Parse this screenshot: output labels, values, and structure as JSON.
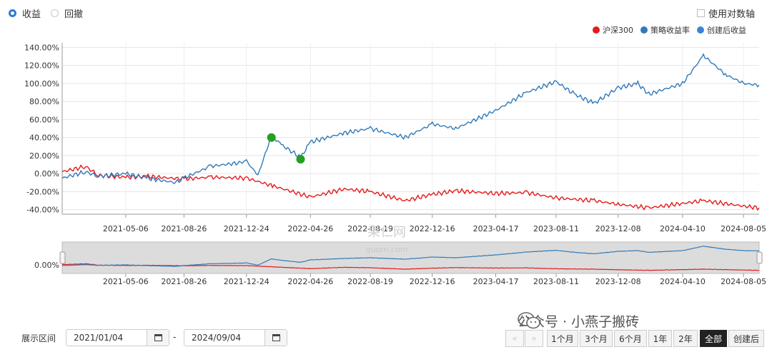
{
  "toggles": {
    "returns": "收益",
    "drawdown": "回撤",
    "log_axis": "使用对数轴"
  },
  "legend": [
    {
      "label": "沪深300",
      "color": "#e41a1c"
    },
    {
      "label": "策略收益率",
      "color": "#2f7ab9"
    },
    {
      "label": "创建后收益",
      "color": "#3b83d8"
    }
  ],
  "chart_data": {
    "type": "line",
    "y_ticks": [
      "140.00%",
      "120.00%",
      "100.00%",
      "80.00%",
      "60.00%",
      "40.00%",
      "20.00%",
      "0.00%",
      "-20.00%",
      "-40.00%"
    ],
    "ylim": [
      -45,
      145
    ],
    "x_ticks": [
      "2021-05-06",
      "2021-08-26",
      "2021-12-24",
      "2022-04-26",
      "2022-08-19",
      "2022-12-16",
      "2023-04-17",
      "2023-08-11",
      "2023-12-08",
      "2024-04-10",
      "2024-08-05"
    ],
    "grid": true,
    "legend_position": "top-right",
    "series": [
      {
        "name": "沪深300",
        "color": "#e41a1c",
        "x": [
          "2021-01-04",
          "2021-02-18",
          "2021-03-15",
          "2021-05-06",
          "2021-06-15",
          "2021-08-26",
          "2021-10-15",
          "2021-12-24",
          "2022-02-15",
          "2022-04-26",
          "2022-06-30",
          "2022-08-19",
          "2022-10-25",
          "2022-12-16",
          "2023-01-30",
          "2023-04-17",
          "2023-06-15",
          "2023-08-11",
          "2023-10-23",
          "2023-12-08",
          "2024-02-05",
          "2024-04-10",
          "2024-05-20",
          "2024-08-05",
          "2024-09-04"
        ],
        "y": [
          2,
          8,
          -2,
          -4,
          -3,
          -6,
          -4,
          -5,
          -14,
          -26,
          -17,
          -20,
          -30,
          -23,
          -19,
          -22,
          -21,
          -27,
          -30,
          -34,
          -38,
          -33,
          -30,
          -36,
          -38
        ]
      },
      {
        "name": "策略收益率",
        "color": "#2f7ab9",
        "x": [
          "2021-01-04",
          "2021-02-18",
          "2021-03-15",
          "2021-05-06",
          "2021-06-15",
          "2021-08-10",
          "2021-08-26",
          "2021-10-15",
          "2021-12-10",
          "2021-12-24",
          "2022-01-15",
          "2022-02-10",
          "2022-03-01",
          "2022-04-07",
          "2022-04-26",
          "2022-06-30",
          "2022-08-19",
          "2022-10-25",
          "2022-12-16",
          "2023-01-30",
          "2023-04-17",
          "2023-06-15",
          "2023-08-11",
          "2023-09-15",
          "2023-10-23",
          "2023-12-08",
          "2024-01-15",
          "2024-02-05",
          "2024-04-10",
          "2024-05-20",
          "2024-07-01",
          "2024-08-05",
          "2024-09-04"
        ],
        "y": [
          -5,
          2,
          -3,
          0,
          -5,
          -10,
          -5,
          8,
          12,
          14,
          -2,
          42,
          32,
          18,
          35,
          45,
          50,
          40,
          55,
          50,
          70,
          90,
          102,
          88,
          78,
          95,
          100,
          88,
          100,
          131,
          110,
          100,
          98
        ]
      }
    ],
    "markers": [
      {
        "x": "2022-02-10",
        "y": 40,
        "color": "#22a022"
      },
      {
        "x": "2022-04-07",
        "y": 16,
        "color": "#22a022"
      }
    ],
    "navigator": {
      "y_tick": "0.00%",
      "x_ticks": [
        "2021-05-06",
        "2021-08-26",
        "2021-12-24",
        "2022-04-26",
        "2022-08-19",
        "2022-12-16",
        "2023-04-17",
        "2023-08-11",
        "2023-12-08",
        "2024-04-10",
        "2024-08-05"
      ]
    }
  },
  "range": {
    "label": "展示区间",
    "from": "2021/01/04",
    "sep": "-",
    "to": "2024/09/04",
    "buttons": [
      "1个月",
      "3个月",
      "6个月",
      "1年",
      "2年",
      "全部",
      "创建后"
    ],
    "selected": "全部"
  },
  "watermark": {
    "text": "公众号 · 小燕子搬砖",
    "site_top": "果仁网",
    "site_bottom": "guorn.com"
  }
}
